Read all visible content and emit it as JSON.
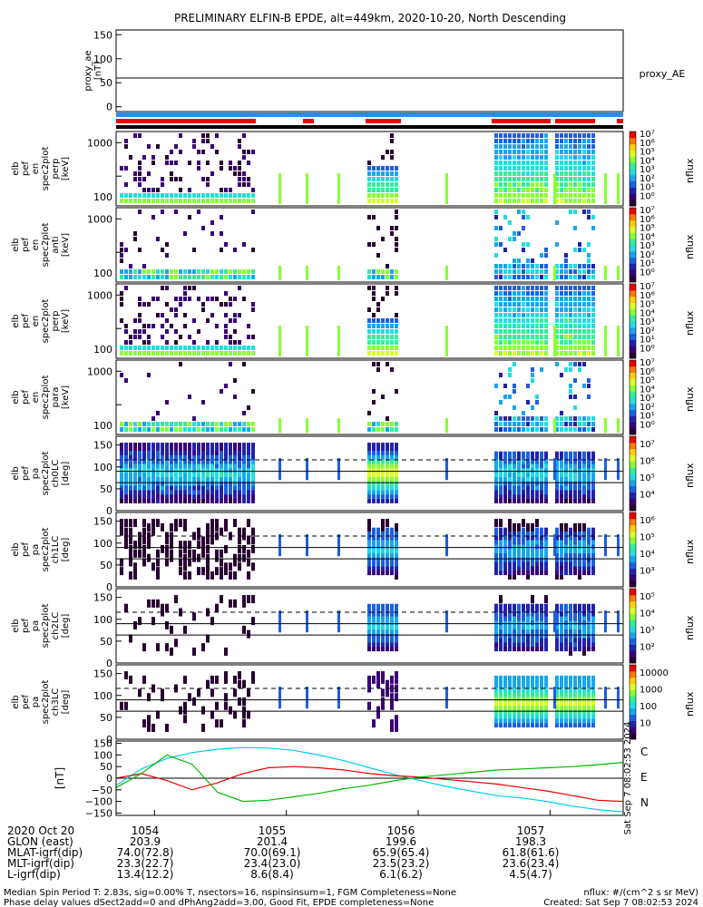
{
  "title": "PRELIMINARY ELFIN-B EPDE, alt=449km, 2020-10-20, North Descending",
  "panels": {
    "ae": {
      "ylabel": [
        "proxy_ae",
        "[nT]"
      ],
      "yticks": [
        "150",
        "100",
        "50",
        "0"
      ],
      "label_right": "proxy_AE"
    },
    "spec": [
      {
        "ylabel": [
          "elb",
          "pef",
          "en",
          "spec2plot",
          "perp",
          "[keV]"
        ],
        "yticks": [
          "1000",
          "100"
        ],
        "cb_ticks": [
          "10⁷",
          "10⁶",
          "10⁵",
          "10⁴",
          "10³",
          "10²",
          "10¹",
          "10⁰"
        ]
      },
      {
        "ylabel": [
          "elb",
          "pef",
          "en",
          "spec2plot",
          "anti",
          "[keV]"
        ],
        "yticks": [
          "1000",
          "100"
        ],
        "cb_ticks": [
          "10⁷",
          "10⁶",
          "10⁵",
          "10⁴",
          "10³",
          "10²",
          "10¹",
          "10⁰"
        ]
      },
      {
        "ylabel": [
          "elb",
          "pef",
          "en",
          "spec2plot",
          "perp",
          "[keV]"
        ],
        "yticks": [
          "1000",
          "100"
        ],
        "cb_ticks": [
          "10⁷",
          "10⁶",
          "10⁵",
          "10⁴",
          "10³",
          "10²",
          "10¹",
          "10⁰"
        ]
      },
      {
        "ylabel": [
          "elb",
          "pef",
          "en",
          "spec2plot",
          "para",
          "[keV]"
        ],
        "yticks": [
          "1000",
          "100"
        ],
        "cb_ticks": [
          "10⁷",
          "10⁶",
          "10⁵",
          "10⁴",
          "10³",
          "10²",
          "10¹",
          "10⁰"
        ]
      }
    ],
    "pa": [
      {
        "ylabel": [
          "elb",
          "pef",
          "pa",
          "spec2plot",
          "ch0LC",
          "[deg]"
        ],
        "yticks": [
          "150",
          "100",
          "50",
          "0"
        ],
        "cb_ticks": [
          "10⁷",
          "10⁶",
          "10⁵",
          "10⁴"
        ]
      },
      {
        "ylabel": [
          "elb",
          "pef",
          "pa",
          "spec2plot",
          "ch1LC",
          "[deg]"
        ],
        "yticks": [
          "150",
          "100",
          "50",
          "0"
        ],
        "cb_ticks": [
          "10⁶",
          "10⁵",
          "10⁴",
          "10³"
        ]
      },
      {
        "ylabel": [
          "elb",
          "pef",
          "pa",
          "spec2plot",
          "ch2LC",
          "[deg]"
        ],
        "yticks": [
          "150",
          "100",
          "50",
          "0"
        ],
        "cb_ticks": [
          "10⁵",
          "10⁴",
          "10³",
          "10²"
        ]
      },
      {
        "ylabel": [
          "elb",
          "pef",
          "pa",
          "spec2plot",
          "ch3LC",
          "[deg]"
        ],
        "yticks": [
          "150",
          "100",
          "50",
          "0"
        ],
        "cb_ticks": [
          "10000",
          "1000",
          "100",
          "10"
        ]
      }
    ],
    "bfield": {
      "ylabel": "[nT]",
      "yticks": [
        "150",
        "100",
        "50",
        "0",
        "−50",
        "−100",
        "−150"
      ],
      "legend": [
        "C",
        "E",
        "N"
      ],
      "vertical_note": "Sat Sep  7 08:02:53 2024"
    },
    "cbar_label": "nflux"
  },
  "footer": {
    "rows": [
      {
        "label": "2020 Oct 20",
        "values": [
          "1054",
          "1055",
          "1056",
          "1057"
        ]
      },
      {
        "label": "GLON (east)",
        "values": [
          "203.9",
          "201.4",
          "199.6",
          "198.3"
        ]
      },
      {
        "label": "MLAT-igrf(dip)",
        "values": [
          "74.0(72.8)",
          "70.0(69.1)",
          "65.9(65.4)",
          "61.8(61.6)"
        ]
      },
      {
        "label": "MLT-igrf(dip)",
        "values": [
          "23.3(22.7)",
          "23.4(23.0)",
          "23.5(23.2)",
          "23.6(23.4)"
        ]
      },
      {
        "label": "L-igrf(dip)",
        "values": [
          "13.4(12.2)",
          "8.6(8.4)",
          "6.1(6.2)",
          "4.5(4.7)"
        ]
      }
    ],
    "note1": "Median Spin Period T: 2.83s, sig=0.00% T, nsectors=16, nspinsinsum=1, FGM Completeness=None",
    "note2": "Phase delay values dSect2add=0 and dPhAng2add=3.00, Good Fit, EPDE completeness=None",
    "unit_note": "nflux: #/(cm^2 s sr MeV)",
    "created": "Created: Sat Sep  7 08:02:53 2024"
  },
  "chart_data": {
    "type": "line",
    "title": "PRELIMINARY ELFIN-B EPDE, alt=449km, 2020-10-20, North Descending",
    "x_ticks": [
      "1054",
      "1055",
      "1056",
      "1057"
    ],
    "proxy_ae": {
      "ylim": [
        -10,
        160
      ],
      "value": 60
    },
    "bfield": {
      "ylabel": "[nT]",
      "ylim": [
        -160,
        160
      ],
      "x": [
        0,
        0.05,
        0.1,
        0.15,
        0.2,
        0.25,
        0.3,
        0.35,
        0.4,
        0.45,
        0.5,
        0.55,
        0.6,
        0.65,
        0.7,
        0.75,
        0.8,
        0.85,
        0.9,
        0.95,
        1.0
      ],
      "series": [
        {
          "name": "C",
          "color": "#00ccee",
          "values": [
            -30,
            40,
            85,
            110,
            125,
            132,
            130,
            120,
            100,
            75,
            45,
            15,
            -10,
            -35,
            -55,
            -75,
            -85,
            -100,
            -120,
            -135,
            -145
          ]
        },
        {
          "name": "E",
          "color": "#ee0000",
          "values": [
            0,
            20,
            -10,
            -50,
            -20,
            20,
            45,
            50,
            45,
            35,
            20,
            10,
            5,
            -5,
            -15,
            -25,
            -40,
            -55,
            -75,
            -95,
            -100
          ]
        },
        {
          "name": "N",
          "color": "#00bb00",
          "values": [
            -40,
            20,
            100,
            60,
            -60,
            -100,
            -95,
            -80,
            -65,
            -45,
            -30,
            -10,
            5,
            15,
            25,
            35,
            40,
            45,
            50,
            58,
            68
          ]
        }
      ]
    }
  }
}
